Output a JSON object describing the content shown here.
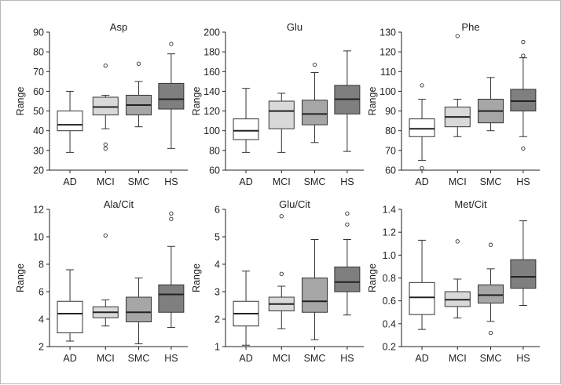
{
  "colors": {
    "AD": "#ffffff",
    "MCI": "#d9d9d9",
    "SMC": "#a6a6a6",
    "HS": "#7f7f7f"
  },
  "chart_data": [
    {
      "type": "box",
      "title": "Asp",
      "ylabel": "Range",
      "categories": [
        "AD",
        "MCI",
        "SMC",
        "HS"
      ],
      "ylim": [
        20,
        90
      ],
      "yticks": [
        20,
        30,
        40,
        50,
        60,
        70,
        80,
        90
      ],
      "boxes": [
        {
          "whisker_low": 29,
          "q1": 40,
          "median": 43,
          "q3": 50,
          "whisker_high": 60,
          "outliers": []
        },
        {
          "whisker_low": 41,
          "q1": 48,
          "median": 52,
          "q3": 57,
          "whisker_high": 58,
          "outliers": [
            73,
            31,
            33
          ]
        },
        {
          "whisker_low": 42,
          "q1": 48,
          "median": 53,
          "q3": 58,
          "whisker_high": 65,
          "outliers": [
            74
          ]
        },
        {
          "whisker_low": 31,
          "q1": 51,
          "median": 56,
          "q3": 64,
          "whisker_high": 79,
          "outliers": [
            84
          ]
        }
      ]
    },
    {
      "type": "box",
      "title": "Glu",
      "ylabel": "Range",
      "categories": [
        "AD",
        "MCI",
        "SMC",
        "HS"
      ],
      "ylim": [
        60,
        200
      ],
      "yticks": [
        60,
        80,
        100,
        120,
        140,
        160,
        180,
        200
      ],
      "boxes": [
        {
          "whisker_low": 78,
          "q1": 91,
          "median": 100,
          "q3": 112,
          "whisker_high": 143,
          "outliers": []
        },
        {
          "whisker_low": 78,
          "q1": 102,
          "median": 120,
          "q3": 130,
          "whisker_high": 138,
          "outliers": []
        },
        {
          "whisker_low": 88,
          "q1": 106,
          "median": 117,
          "q3": 131,
          "whisker_high": 159,
          "outliers": [
            167
          ]
        },
        {
          "whisker_low": 79,
          "q1": 117,
          "median": 132,
          "q3": 146,
          "whisker_high": 181,
          "outliers": []
        }
      ]
    },
    {
      "type": "box",
      "title": "Phe",
      "ylabel": "Range",
      "categories": [
        "AD",
        "MCI",
        "SMC",
        "HS"
      ],
      "ylim": [
        60,
        130
      ],
      "yticks": [
        60,
        70,
        80,
        90,
        100,
        110,
        120,
        130
      ],
      "boxes": [
        {
          "whisker_low": 65,
          "q1": 77,
          "median": 81,
          "q3": 86,
          "whisker_high": 96,
          "outliers": [
            103,
            61
          ]
        },
        {
          "whisker_low": 77,
          "q1": 82,
          "median": 87,
          "q3": 92,
          "whisker_high": 96,
          "outliers": [
            128
          ]
        },
        {
          "whisker_low": 80,
          "q1": 84,
          "median": 90,
          "q3": 96,
          "whisker_high": 107,
          "outliers": []
        },
        {
          "whisker_low": 77,
          "q1": 90,
          "median": 95,
          "q3": 101,
          "whisker_high": 117,
          "outliers": [
            125,
            118,
            71
          ]
        }
      ]
    },
    {
      "type": "box",
      "title": "Ala/Cit",
      "ylabel": "Range",
      "categories": [
        "AD",
        "MCI",
        "SMC",
        "HS"
      ],
      "ylim": [
        2,
        12
      ],
      "yticks": [
        2,
        4,
        6,
        8,
        10,
        12
      ],
      "boxes": [
        {
          "whisker_low": 2.4,
          "q1": 3.0,
          "median": 4.4,
          "q3": 5.3,
          "whisker_high": 7.6,
          "outliers": []
        },
        {
          "whisker_low": 3.5,
          "q1": 4.1,
          "median": 4.5,
          "q3": 4.9,
          "whisker_high": 5.4,
          "outliers": [
            10.1
          ]
        },
        {
          "whisker_low": 2.2,
          "q1": 3.8,
          "median": 4.5,
          "q3": 5.6,
          "whisker_high": 7.0,
          "outliers": []
        },
        {
          "whisker_low": 3.4,
          "q1": 4.5,
          "median": 5.8,
          "q3": 6.5,
          "whisker_high": 9.3,
          "outliers": [
            11.7,
            11.3
          ]
        }
      ]
    },
    {
      "type": "box",
      "title": "Glu/Cit",
      "ylabel": "Range",
      "categories": [
        "AD",
        "MCI",
        "SMC",
        "HS"
      ],
      "ylim": [
        1,
        6
      ],
      "yticks": [
        1,
        2,
        3,
        4,
        5,
        6
      ],
      "boxes": [
        {
          "whisker_low": 1.05,
          "q1": 1.75,
          "median": 2.2,
          "q3": 2.65,
          "whisker_high": 3.75,
          "outliers": []
        },
        {
          "whisker_low": 1.65,
          "q1": 2.3,
          "median": 2.55,
          "q3": 2.8,
          "whisker_high": 3.2,
          "outliers": [
            5.75,
            3.65
          ]
        },
        {
          "whisker_low": 1.25,
          "q1": 2.25,
          "median": 2.65,
          "q3": 3.5,
          "whisker_high": 4.9,
          "outliers": []
        },
        {
          "whisker_low": 2.15,
          "q1": 3.0,
          "median": 3.35,
          "q3": 3.9,
          "whisker_high": 4.9,
          "outliers": [
            5.85,
            5.45
          ]
        }
      ]
    },
    {
      "type": "box",
      "title": "Met/Cit",
      "ylabel": "Range",
      "categories": [
        "AD",
        "MCI",
        "SMC",
        "HS"
      ],
      "ylim": [
        0.2,
        1.4
      ],
      "yticks": [
        0.2,
        0.4,
        0.6,
        0.8,
        1.0,
        1.2,
        1.4
      ],
      "boxes": [
        {
          "whisker_low": 0.35,
          "q1": 0.48,
          "median": 0.63,
          "q3": 0.76,
          "whisker_high": 1.13,
          "outliers": []
        },
        {
          "whisker_low": 0.45,
          "q1": 0.55,
          "median": 0.61,
          "q3": 0.68,
          "whisker_high": 0.79,
          "outliers": [
            1.12
          ]
        },
        {
          "whisker_low": 0.42,
          "q1": 0.58,
          "median": 0.65,
          "q3": 0.74,
          "whisker_high": 0.88,
          "outliers": [
            1.09,
            0.32
          ]
        },
        {
          "whisker_low": 0.56,
          "q1": 0.71,
          "median": 0.81,
          "q3": 0.96,
          "whisker_high": 1.3,
          "outliers": []
        }
      ]
    }
  ]
}
